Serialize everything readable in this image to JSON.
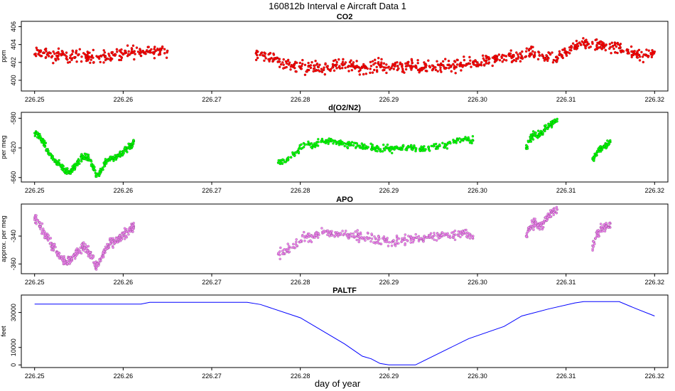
{
  "figure_title": "160812b   Interval e Aircraft Data 1",
  "xlabel": "day of year",
  "x_tick_labels": [
    "226.25",
    "226.26",
    "226.27",
    "226.28",
    "226.29",
    "226.30",
    "226.31",
    "226.32"
  ],
  "colors": {
    "co2": "#ff0000",
    "o2n2": "#00ff00",
    "apo": "#ee82ee",
    "paltf": "#0000ff"
  },
  "chart_data": [
    {
      "type": "scatter",
      "title": "CO2",
      "ylabel": "ppm",
      "xlim": [
        226.2485,
        226.3215
      ],
      "ylim": [
        398.8,
        406.6
      ],
      "yticks": [
        400,
        402,
        404,
        406
      ],
      "y_tick_labels": [
        "400",
        "402",
        "404",
        "406"
      ],
      "color": "#ff0000",
      "points": [
        [
          226.25,
          402.9
        ],
        [
          226.251,
          403.1
        ],
        [
          226.252,
          402.7
        ],
        [
          226.253,
          402.8
        ],
        [
          226.254,
          402.5
        ],
        [
          226.255,
          402.9
        ],
        [
          226.256,
          402.6
        ],
        [
          226.257,
          402.7
        ],
        [
          226.258,
          402.7
        ],
        [
          226.259,
          402.8
        ],
        [
          226.26,
          402.9
        ],
        [
          226.261,
          403.2
        ],
        [
          226.262,
          403.1
        ],
        [
          226.263,
          403.3
        ],
        [
          226.264,
          403.4
        ],
        [
          226.265,
          403.3
        ],
        [
          226.275,
          403.0
        ],
        [
          226.276,
          402.7
        ],
        [
          226.277,
          402.3
        ],
        [
          226.278,
          402.0
        ],
        [
          226.279,
          401.7
        ],
        [
          226.28,
          401.4
        ],
        [
          226.281,
          401.6
        ],
        [
          226.282,
          401.5
        ],
        [
          226.283,
          401.5
        ],
        [
          226.284,
          401.6
        ],
        [
          226.285,
          401.8
        ],
        [
          226.286,
          401.5
        ],
        [
          226.287,
          401.4
        ],
        [
          226.288,
          401.6
        ],
        [
          226.289,
          401.7
        ],
        [
          226.29,
          401.5
        ],
        [
          226.291,
          401.6
        ],
        [
          226.292,
          401.6
        ],
        [
          226.293,
          401.5
        ],
        [
          226.294,
          401.4
        ],
        [
          226.295,
          401.6
        ],
        [
          226.296,
          401.7
        ],
        [
          226.297,
          401.5
        ],
        [
          226.298,
          401.6
        ],
        [
          226.299,
          401.9
        ],
        [
          226.3,
          402.0
        ],
        [
          226.301,
          402.2
        ],
        [
          226.302,
          402.3
        ],
        [
          226.303,
          402.3
        ],
        [
          226.304,
          402.6
        ],
        [
          226.305,
          402.7
        ],
        [
          226.306,
          403.0
        ],
        [
          226.307,
          402.8
        ],
        [
          226.308,
          402.5
        ],
        [
          226.309,
          402.3
        ],
        [
          226.31,
          403.2
        ],
        [
          226.311,
          403.9
        ],
        [
          226.312,
          404.0
        ],
        [
          226.313,
          404.1
        ],
        [
          226.314,
          403.9
        ],
        [
          226.315,
          403.7
        ],
        [
          226.316,
          403.6
        ],
        [
          226.317,
          403.4
        ],
        [
          226.318,
          402.6
        ],
        [
          226.319,
          402.8
        ],
        [
          226.32,
          403.2
        ]
      ],
      "spread": 0.6
    },
    {
      "type": "scatter",
      "title": "d(O2/N2)",
      "ylabel": "per meg",
      "xlim": [
        226.2485,
        226.3215
      ],
      "ylim": [
        -666,
        -572
      ],
      "yticks": [
        -660,
        -620,
        -580
      ],
      "y_tick_labels": [
        "-660",
        "-620",
        "-580"
      ],
      "color": "#00ff00",
      "points": [
        [
          226.25,
          -600
        ],
        [
          226.2505,
          -603
        ],
        [
          226.251,
          -613
        ],
        [
          226.2515,
          -625
        ],
        [
          226.252,
          -633
        ],
        [
          226.2525,
          -640
        ],
        [
          226.253,
          -645
        ],
        [
          226.2535,
          -651
        ],
        [
          226.254,
          -652
        ],
        [
          226.2545,
          -645
        ],
        [
          226.255,
          -637
        ],
        [
          226.2555,
          -632
        ],
        [
          226.256,
          -633
        ],
        [
          226.2565,
          -642
        ],
        [
          226.257,
          -657
        ],
        [
          226.2575,
          -652
        ],
        [
          226.258,
          -638
        ],
        [
          226.2585,
          -634
        ],
        [
          226.259,
          -634
        ],
        [
          226.2595,
          -629
        ],
        [
          226.26,
          -626
        ],
        [
          226.2605,
          -620
        ],
        [
          226.261,
          -617
        ],
        [
          226.2612,
          -611
        ],
        [
          226.2775,
          -640
        ],
        [
          226.2785,
          -637
        ],
        [
          226.2795,
          -626
        ],
        [
          226.2805,
          -615
        ],
        [
          226.2815,
          -617
        ],
        [
          226.2825,
          -610
        ],
        [
          226.2835,
          -611
        ],
        [
          226.2845,
          -613
        ],
        [
          226.2855,
          -615
        ],
        [
          226.2865,
          -617
        ],
        [
          226.2875,
          -619
        ],
        [
          226.2885,
          -621
        ],
        [
          226.2895,
          -621
        ],
        [
          226.2905,
          -621
        ],
        [
          226.2915,
          -620
        ],
        [
          226.2925,
          -619
        ],
        [
          226.2935,
          -621
        ],
        [
          226.2945,
          -620
        ],
        [
          226.2955,
          -618
        ],
        [
          226.2965,
          -616
        ],
        [
          226.2975,
          -612
        ],
        [
          226.2985,
          -608
        ],
        [
          226.2995,
          -610
        ],
        [
          226.3055,
          -620
        ],
        [
          226.306,
          -607
        ],
        [
          226.3065,
          -601
        ],
        [
          226.307,
          -603
        ],
        [
          226.3075,
          -596
        ],
        [
          226.308,
          -592
        ],
        [
          226.3085,
          -587
        ],
        [
          226.309,
          -581
        ],
        [
          226.313,
          -635
        ],
        [
          226.3135,
          -626
        ],
        [
          226.314,
          -620
        ],
        [
          226.3145,
          -617
        ],
        [
          226.315,
          -612
        ]
      ],
      "spread": 4
    },
    {
      "type": "scatter",
      "title": "APO",
      "ylabel": "approx. per meg",
      "xlim": [
        226.2485,
        226.3215
      ],
      "ylim": [
        -367,
        -317
      ],
      "yticks": [
        -360,
        -340
      ],
      "y_tick_labels": [
        "-360",
        "-340"
      ],
      "color": "#ee82ee",
      "points": [
        [
          226.25,
          -327
        ],
        [
          226.2505,
          -330
        ],
        [
          226.251,
          -336
        ],
        [
          226.2515,
          -342
        ],
        [
          226.252,
          -347
        ],
        [
          226.2525,
          -351
        ],
        [
          226.253,
          -355
        ],
        [
          226.2535,
          -358
        ],
        [
          226.254,
          -357
        ],
        [
          226.2545,
          -354
        ],
        [
          226.255,
          -350
        ],
        [
          226.2555,
          -347
        ],
        [
          226.256,
          -350
        ],
        [
          226.2565,
          -356
        ],
        [
          226.257,
          -362
        ],
        [
          226.2575,
          -356
        ],
        [
          226.258,
          -350
        ],
        [
          226.2585,
          -346
        ],
        [
          226.259,
          -344
        ],
        [
          226.2595,
          -342
        ],
        [
          226.26,
          -340
        ],
        [
          226.2605,
          -337
        ],
        [
          226.261,
          -334
        ],
        [
          226.2612,
          -333
        ],
        [
          226.2775,
          -353
        ],
        [
          226.2785,
          -350
        ],
        [
          226.2795,
          -346
        ],
        [
          226.2805,
          -341
        ],
        [
          226.2815,
          -341
        ],
        [
          226.2825,
          -337
        ],
        [
          226.2835,
          -338
        ],
        [
          226.2845,
          -339
        ],
        [
          226.2855,
          -339
        ],
        [
          226.2865,
          -340
        ],
        [
          226.2875,
          -341
        ],
        [
          226.2885,
          -342
        ],
        [
          226.2895,
          -343
        ],
        [
          226.2905,
          -344
        ],
        [
          226.2915,
          -343
        ],
        [
          226.2925,
          -342
        ],
        [
          226.2935,
          -342
        ],
        [
          226.2945,
          -341
        ],
        [
          226.2955,
          -340
        ],
        [
          226.2965,
          -339
        ],
        [
          226.2975,
          -339
        ],
        [
          226.2985,
          -338
        ],
        [
          226.2995,
          -340
        ],
        [
          226.3055,
          -340
        ],
        [
          226.306,
          -333
        ],
        [
          226.3065,
          -330
        ],
        [
          226.307,
          -333
        ],
        [
          226.3075,
          -330
        ],
        [
          226.308,
          -326
        ],
        [
          226.3085,
          -323
        ],
        [
          226.309,
          -321
        ],
        [
          226.313,
          -347
        ],
        [
          226.3135,
          -339
        ],
        [
          226.314,
          -335
        ],
        [
          226.3145,
          -333
        ],
        [
          226.315,
          -331
        ]
      ],
      "spread": 3
    },
    {
      "type": "line",
      "title": "PALTF",
      "ylabel": "feet",
      "xlim": [
        226.2485,
        226.3215
      ],
      "ylim": [
        -1500,
        40000
      ],
      "yticks": [
        0,
        10000,
        30000
      ],
      "y_tick_labels": [
        "0",
        "10000",
        "30000"
      ],
      "color": "#0000ff",
      "points": [
        [
          226.25,
          34800
        ],
        [
          226.262,
          34800
        ],
        [
          226.263,
          35800
        ],
        [
          226.274,
          35800
        ],
        [
          226.2755,
          34600
        ],
        [
          226.28,
          27000
        ],
        [
          226.285,
          12000
        ],
        [
          226.287,
          5000
        ],
        [
          226.288,
          3500
        ],
        [
          226.289,
          800
        ],
        [
          226.29,
          0
        ],
        [
          226.292,
          0
        ],
        [
          226.293,
          0
        ],
        [
          226.297,
          10000
        ],
        [
          226.299,
          15000
        ],
        [
          226.303,
          22000
        ],
        [
          226.305,
          28000
        ],
        [
          226.308,
          32000
        ],
        [
          226.311,
          35500
        ],
        [
          226.312,
          36200
        ],
        [
          226.316,
          36200
        ],
        [
          226.318,
          32000
        ],
        [
          226.32,
          28000
        ]
      ]
    }
  ]
}
